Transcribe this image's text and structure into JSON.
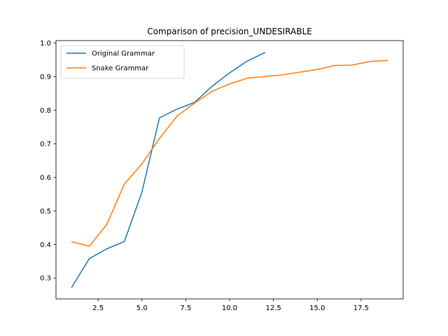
{
  "chart_data": {
    "type": "line",
    "title": "Comparison of precision_UNDESIRABLE",
    "xlabel": "",
    "ylabel": "",
    "xlim": [
      0.1,
      19.9
    ],
    "ylim": [
      0.238,
      1.007
    ],
    "xticks": [
      2.5,
      5.0,
      7.5,
      10.0,
      12.5,
      15.0,
      17.5
    ],
    "xtick_labels": [
      "2.5",
      "5.0",
      "7.5",
      "10.0",
      "12.5",
      "15.0",
      "17.5"
    ],
    "yticks": [
      0.3,
      0.4,
      0.5,
      0.6,
      0.7,
      0.8,
      0.9,
      1.0
    ],
    "ytick_labels": [
      "0.3",
      "0.4",
      "0.5",
      "0.6",
      "0.7",
      "0.8",
      "0.9",
      "1.0"
    ],
    "grid": false,
    "legend_position": "top-left",
    "series": [
      {
        "name": "Original Grammar",
        "color": "#1f77b4",
        "x": [
          1,
          2,
          3,
          4,
          5,
          6,
          7,
          8,
          9,
          10,
          11,
          12
        ],
        "y": [
          0.273,
          0.358,
          0.387,
          0.409,
          0.556,
          0.777,
          0.803,
          0.823,
          0.871,
          0.911,
          0.946,
          0.971
        ]
      },
      {
        "name": "Snake Grammar",
        "color": "#ff7f0e",
        "x": [
          1,
          2,
          3,
          4,
          5,
          6,
          7,
          8,
          9,
          10,
          11,
          12,
          13,
          14,
          15,
          16,
          17,
          18,
          19
        ],
        "y": [
          0.408,
          0.395,
          0.46,
          0.58,
          0.64,
          0.716,
          0.782,
          0.821,
          0.856,
          0.878,
          0.895,
          0.9,
          0.905,
          0.913,
          0.921,
          0.933,
          0.934,
          0.945,
          0.948
        ]
      }
    ]
  }
}
